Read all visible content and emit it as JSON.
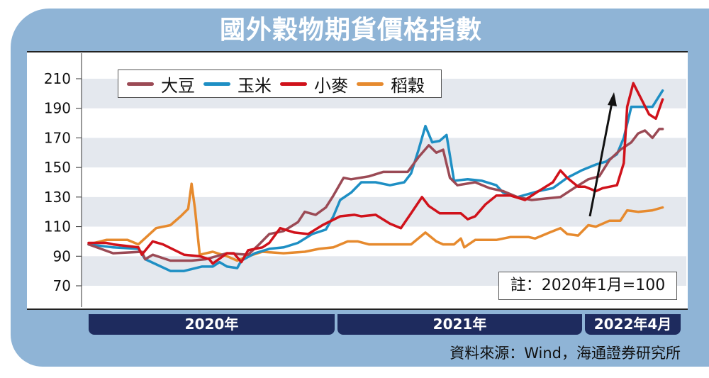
{
  "title": "國外穀物期貨價格指數",
  "note": "註：2020年1月=100",
  "source": "資料來源：Wind，海通證券研究所",
  "timeline": [
    "2020年",
    "2021年",
    "2022年4月"
  ],
  "chart_data": {
    "type": "line",
    "title": "國外穀物期貨價格指數",
    "xlabel": "",
    "ylabel": "",
    "ylim": [
      70,
      210
    ],
    "yticks": [
      210,
      190,
      170,
      150,
      130,
      110,
      90,
      70
    ],
    "xlim": [
      "2020-01-01",
      "2022-04-30"
    ],
    "grid": "alternating horizontal bands",
    "legend": "top-left",
    "annotations": [
      "upward arrow 2022-01 to 2022-02"
    ],
    "series": [
      {
        "name": "大豆",
        "color": "#9b4a55",
        "points": [
          [
            "2020-01-01",
            98
          ],
          [
            "2020-02-06",
            92
          ],
          [
            "2020-03-19",
            93
          ],
          [
            "2020-03-24",
            88
          ],
          [
            "2020-04-04",
            91
          ],
          [
            "2020-04-30",
            87
          ],
          [
            "2020-05-31",
            87
          ],
          [
            "2020-06-21",
            88
          ],
          [
            "2020-07-22",
            92
          ],
          [
            "2020-08-22",
            91
          ],
          [
            "2020-09-07",
            98
          ],
          [
            "2020-09-22",
            105
          ],
          [
            "2020-10-13",
            107
          ],
          [
            "2020-11-03",
            113
          ],
          [
            "2020-11-13",
            120
          ],
          [
            "2020-11-29",
            118
          ],
          [
            "2020-12-14",
            123
          ],
          [
            "2020-12-25",
            131
          ],
          [
            "2021-01-09",
            143
          ],
          [
            "2021-01-20",
            142
          ],
          [
            "2021-02-15",
            144
          ],
          [
            "2021-03-08",
            147
          ],
          [
            "2021-03-28",
            147
          ],
          [
            "2021-04-13",
            147
          ],
          [
            "2021-04-29",
            157
          ],
          [
            "2021-05-14",
            165
          ],
          [
            "2021-05-25",
            160
          ],
          [
            "2021-06-04",
            162
          ],
          [
            "2021-06-14",
            143
          ],
          [
            "2021-06-25",
            138
          ],
          [
            "2021-07-21",
            140
          ],
          [
            "2021-08-11",
            136
          ],
          [
            "2021-08-31",
            134
          ],
          [
            "2021-09-21",
            130
          ],
          [
            "2021-10-12",
            128
          ],
          [
            "2021-11-02",
            129
          ],
          [
            "2021-11-23",
            130
          ],
          [
            "2021-12-13",
            136
          ],
          [
            "2022-01-03",
            142
          ],
          [
            "2022-01-19",
            144
          ],
          [
            "2022-02-03",
            155
          ],
          [
            "2022-02-19",
            162
          ],
          [
            "2022-03-07",
            167
          ],
          [
            "2022-03-17",
            173
          ],
          [
            "2022-03-27",
            175
          ],
          [
            "2022-04-07",
            170
          ],
          [
            "2022-04-17",
            176
          ],
          [
            "2022-04-22",
            176
          ]
        ]
      },
      {
        "name": "玉米",
        "color": "#1e8fc4",
        "points": [
          [
            "2020-01-01",
            98
          ],
          [
            "2020-02-06",
            96
          ],
          [
            "2020-03-14",
            95
          ],
          [
            "2020-03-24",
            88
          ],
          [
            "2020-04-30",
            80
          ],
          [
            "2020-05-20",
            80
          ],
          [
            "2020-06-15",
            83
          ],
          [
            "2020-07-01",
            83
          ],
          [
            "2020-07-11",
            86
          ],
          [
            "2020-07-22",
            83
          ],
          [
            "2020-08-06",
            82
          ],
          [
            "2020-08-12",
            87
          ],
          [
            "2020-09-01",
            92
          ],
          [
            "2020-09-22",
            95
          ],
          [
            "2020-10-13",
            96
          ],
          [
            "2020-11-03",
            99
          ],
          [
            "2020-11-24",
            105
          ],
          [
            "2020-12-14",
            108
          ],
          [
            "2020-12-25",
            117
          ],
          [
            "2021-01-04",
            128
          ],
          [
            "2021-01-20",
            133
          ],
          [
            "2021-02-04",
            140
          ],
          [
            "2021-02-25",
            140
          ],
          [
            "2021-03-18",
            138
          ],
          [
            "2021-04-08",
            140
          ],
          [
            "2021-04-18",
            146
          ],
          [
            "2021-04-29",
            162
          ],
          [
            "2021-05-09",
            178
          ],
          [
            "2021-05-19",
            167
          ],
          [
            "2021-05-30",
            168
          ],
          [
            "2021-06-09",
            172
          ],
          [
            "2021-06-20",
            141
          ],
          [
            "2021-07-10",
            142
          ],
          [
            "2021-07-31",
            141
          ],
          [
            "2021-08-21",
            138
          ],
          [
            "2021-08-31",
            133
          ],
          [
            "2021-09-21",
            130
          ],
          [
            "2021-10-22",
            134
          ],
          [
            "2021-11-12",
            136
          ],
          [
            "2021-12-03",
            143
          ],
          [
            "2021-12-24",
            148
          ],
          [
            "2022-01-14",
            152
          ],
          [
            "2022-01-29",
            154
          ],
          [
            "2022-02-14",
            159
          ],
          [
            "2022-02-24",
            170
          ],
          [
            "2022-03-07",
            191
          ],
          [
            "2022-03-27",
            191
          ],
          [
            "2022-04-07",
            191
          ],
          [
            "2022-04-22",
            202
          ]
        ]
      },
      {
        "name": "小麥",
        "color": "#d0121b",
        "points": [
          [
            "2020-01-01",
            99
          ],
          [
            "2020-01-27",
            99
          ],
          [
            "2020-02-06",
            98
          ],
          [
            "2020-03-14",
            96
          ],
          [
            "2020-03-19",
            91
          ],
          [
            "2020-04-04",
            100
          ],
          [
            "2020-04-19",
            98
          ],
          [
            "2020-05-20",
            91
          ],
          [
            "2020-06-12",
            90
          ],
          [
            "2020-06-26",
            88
          ],
          [
            "2020-07-01",
            85
          ],
          [
            "2020-07-22",
            92
          ],
          [
            "2020-08-01",
            92
          ],
          [
            "2020-08-12",
            86
          ],
          [
            "2020-08-22",
            94
          ],
          [
            "2020-09-12",
            96
          ],
          [
            "2020-09-22",
            99
          ],
          [
            "2020-10-08",
            109
          ],
          [
            "2020-10-29",
            106
          ],
          [
            "2020-11-18",
            105
          ],
          [
            "2020-12-09",
            111
          ],
          [
            "2021-01-04",
            117
          ],
          [
            "2021-01-25",
            118
          ],
          [
            "2021-02-04",
            117
          ],
          [
            "2021-02-25",
            118
          ],
          [
            "2021-03-18",
            112
          ],
          [
            "2021-04-03",
            109
          ],
          [
            "2021-04-18",
            119
          ],
          [
            "2021-05-04",
            130
          ],
          [
            "2021-05-14",
            124
          ],
          [
            "2021-05-30",
            119
          ],
          [
            "2021-06-30",
            119
          ],
          [
            "2021-07-10",
            115
          ],
          [
            "2021-07-21",
            117
          ],
          [
            "2021-08-05",
            125
          ],
          [
            "2021-08-21",
            131
          ],
          [
            "2021-09-11",
            131
          ],
          [
            "2021-10-02",
            128
          ],
          [
            "2021-10-22",
            134
          ],
          [
            "2021-11-12",
            140
          ],
          [
            "2021-11-23",
            148
          ],
          [
            "2021-12-03",
            143
          ],
          [
            "2021-12-19",
            137
          ],
          [
            "2021-12-29",
            137
          ],
          [
            "2022-01-14",
            134
          ],
          [
            "2022-01-24",
            136
          ],
          [
            "2022-02-14",
            138
          ],
          [
            "2022-02-24",
            153
          ],
          [
            "2022-03-01",
            191
          ],
          [
            "2022-03-10",
            207
          ],
          [
            "2022-03-22",
            196
          ],
          [
            "2022-04-02",
            186
          ],
          [
            "2022-04-12",
            183
          ],
          [
            "2022-04-22",
            196
          ]
        ]
      },
      {
        "name": "稻穀",
        "color": "#e68a2e",
        "points": [
          [
            "2020-01-01",
            98
          ],
          [
            "2020-01-27",
            101
          ],
          [
            "2020-02-27",
            101
          ],
          [
            "2020-03-14",
            98
          ],
          [
            "2020-04-09",
            109
          ],
          [
            "2020-04-30",
            111
          ],
          [
            "2020-05-15",
            117
          ],
          [
            "2020-05-26",
            122
          ],
          [
            "2020-05-31",
            139
          ],
          [
            "2020-06-05",
            122
          ],
          [
            "2020-06-12",
            91
          ],
          [
            "2020-07-01",
            93
          ],
          [
            "2020-07-22",
            90
          ],
          [
            "2020-08-06",
            87
          ],
          [
            "2020-08-22",
            90
          ],
          [
            "2020-09-12",
            93
          ],
          [
            "2020-10-13",
            92
          ],
          [
            "2020-11-13",
            93
          ],
          [
            "2020-12-04",
            95
          ],
          [
            "2020-12-25",
            96
          ],
          [
            "2021-01-15",
            100
          ],
          [
            "2021-01-30",
            100
          ],
          [
            "2021-02-15",
            98
          ],
          [
            "2021-03-18",
            98
          ],
          [
            "2021-04-18",
            98
          ],
          [
            "2021-05-09",
            106
          ],
          [
            "2021-05-25",
            100
          ],
          [
            "2021-06-04",
            98
          ],
          [
            "2021-06-20",
            98
          ],
          [
            "2021-06-30",
            102
          ],
          [
            "2021-07-05",
            96
          ],
          [
            "2021-07-21",
            101
          ],
          [
            "2021-08-21",
            101
          ],
          [
            "2021-09-11",
            103
          ],
          [
            "2021-10-07",
            103
          ],
          [
            "2021-10-17",
            102
          ],
          [
            "2021-11-07",
            106
          ],
          [
            "2021-11-23",
            109
          ],
          [
            "2021-12-03",
            105
          ],
          [
            "2021-12-19",
            104
          ],
          [
            "2022-01-03",
            111
          ],
          [
            "2022-01-14",
            110
          ],
          [
            "2022-02-03",
            114
          ],
          [
            "2022-02-19",
            114
          ],
          [
            "2022-03-01",
            121
          ],
          [
            "2022-03-17",
            120
          ],
          [
            "2022-04-07",
            121
          ],
          [
            "2022-04-22",
            123
          ]
        ]
      }
    ]
  }
}
